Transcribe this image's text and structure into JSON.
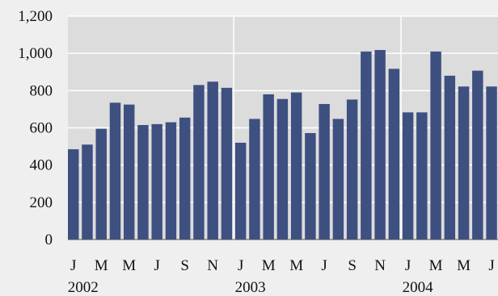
{
  "chart_data": {
    "type": "bar",
    "categories": [
      "2002-01",
      "2002-02",
      "2002-03",
      "2002-04",
      "2002-05",
      "2002-06",
      "2002-07",
      "2002-08",
      "2002-09",
      "2002-10",
      "2002-11",
      "2002-12",
      "2003-01",
      "2003-02",
      "2003-03",
      "2003-04",
      "2003-05",
      "2003-06",
      "2003-07",
      "2003-08",
      "2003-09",
      "2003-10",
      "2003-11",
      "2003-12",
      "2004-01",
      "2004-02",
      "2004-03",
      "2004-04",
      "2004-05",
      "2004-06",
      "2004-07"
    ],
    "month_tick_labels": [
      "J",
      "",
      "M",
      "",
      "M",
      "",
      "J",
      "",
      "S",
      "",
      "N",
      "",
      "J",
      "",
      "M",
      "",
      "M",
      "",
      "J",
      "",
      "S",
      "",
      "N",
      "",
      "J",
      "",
      "M",
      "",
      "M",
      "",
      "J"
    ],
    "year_labels": [
      {
        "text": "2002",
        "start_index": 0,
        "end_index": 11
      },
      {
        "text": "2003",
        "start_index": 12,
        "end_index": 23
      },
      {
        "text": "2004",
        "start_index": 24,
        "end_index": 30
      }
    ],
    "values": [
      485,
      510,
      595,
      735,
      725,
      615,
      620,
      630,
      655,
      830,
      848,
      815,
      520,
      648,
      780,
      755,
      790,
      572,
      728,
      648,
      752,
      1010,
      1018,
      917,
      683,
      683,
      1010,
      880,
      822,
      907,
      822
    ],
    "ylim": [
      0,
      1200
    ],
    "yticks": [
      "0",
      "200",
      "400",
      "600",
      "800",
      "1,000",
      "1,200"
    ],
    "ytick_values": [
      0,
      200,
      400,
      600,
      800,
      1000,
      1200
    ],
    "grid": true,
    "bar_color": "#3e5080",
    "plot_background": "#dcdcdc",
    "page_background": "#efefef",
    "grid_color": "#ffffff"
  }
}
